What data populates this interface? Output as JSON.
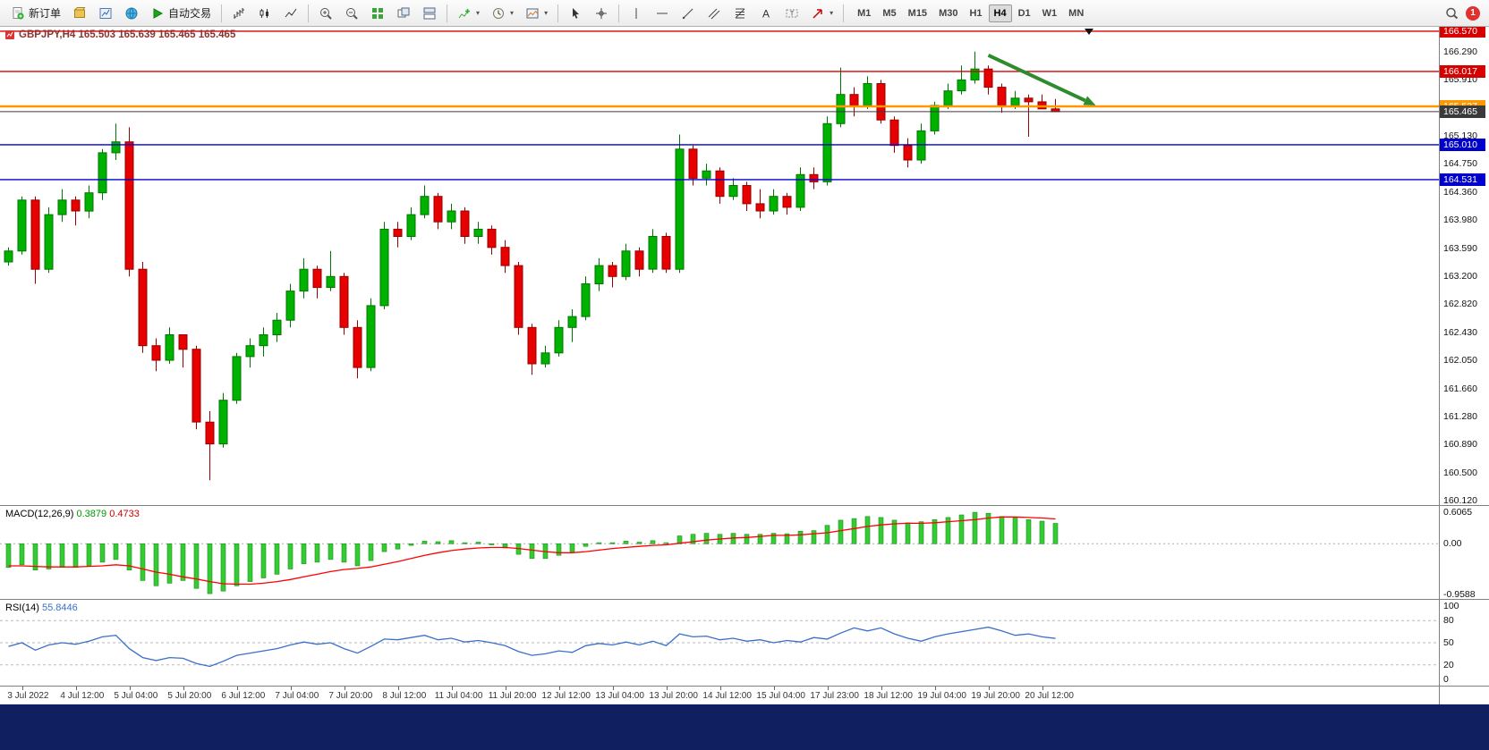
{
  "toolbar": {
    "new_order_label": "新订单",
    "auto_trading_label": "自动交易",
    "timeframes": [
      "M1",
      "M5",
      "M15",
      "M30",
      "H1",
      "H4",
      "D1",
      "W1",
      "MN"
    ],
    "active_timeframe": "H4",
    "notification_count": "1"
  },
  "chart": {
    "title": "GBPJPY,H4 165.503 165.639 165.465 165.465"
  },
  "chart_data": {
    "type": "candlestick",
    "symbol": "GBPJPY",
    "timeframe": "H4",
    "last_ohlc": {
      "open": "165.503",
      "high": "165.639",
      "low": "165.465",
      "close": "165.465"
    },
    "price_axis": {
      "ymin": 160.06,
      "ymax": 166.63,
      "ticks": [
        "166.290",
        "165.910",
        "165.130",
        "164.750",
        "164.360",
        "163.980",
        "163.590",
        "163.200",
        "162.820",
        "162.430",
        "162.050",
        "161.660",
        "161.280",
        "160.890",
        "160.500",
        "160.120"
      ]
    },
    "levels": [
      {
        "name": "resistance-line-upper",
        "label": "166.570",
        "value": 166.57,
        "color": "#d60000",
        "width": 1.4
      },
      {
        "name": "resistance-line-lower",
        "label": "166.017",
        "value": 166.017,
        "color": "#d60000",
        "width": 1.4
      },
      {
        "name": "key-level-orange",
        "label": "165.537",
        "value": 165.537,
        "color": "#ff9800",
        "width": 2.4
      },
      {
        "name": "current-price-line",
        "label": "165.465",
        "value": 165.465,
        "color": "#3a3a3a",
        "width": 1
      },
      {
        "name": "support-line-upper",
        "label": "165.010",
        "value": 165.01,
        "color": "#0000cc",
        "width": 1.4
      },
      {
        "name": "support-line-lower",
        "label": "164.531",
        "value": 164.531,
        "color": "#0000cc",
        "width": 1.4
      }
    ],
    "candles": [
      [
        163.4,
        163.6,
        163.35,
        163.55
      ],
      [
        163.55,
        164.3,
        163.5,
        164.25
      ],
      [
        164.25,
        164.3,
        163.1,
        163.3
      ],
      [
        163.3,
        164.15,
        163.25,
        164.05
      ],
      [
        164.05,
        164.4,
        163.95,
        164.25
      ],
      [
        164.25,
        164.3,
        163.9,
        164.1
      ],
      [
        164.1,
        164.45,
        164.0,
        164.35
      ],
      [
        164.35,
        164.95,
        164.25,
        164.9
      ],
      [
        164.9,
        165.3,
        164.8,
        165.05
      ],
      [
        165.05,
        165.25,
        163.2,
        163.3
      ],
      [
        163.3,
        163.4,
        162.15,
        162.25
      ],
      [
        162.25,
        162.35,
        161.9,
        162.05
      ],
      [
        162.05,
        162.5,
        162.0,
        162.4
      ],
      [
        162.4,
        162.4,
        161.95,
        162.2
      ],
      [
        162.2,
        162.25,
        161.1,
        161.2
      ],
      [
        161.2,
        161.35,
        160.4,
        160.9
      ],
      [
        160.9,
        161.6,
        160.85,
        161.5
      ],
      [
        161.5,
        162.15,
        161.45,
        162.1
      ],
      [
        162.1,
        162.35,
        161.95,
        162.25
      ],
      [
        162.25,
        162.5,
        162.1,
        162.4
      ],
      [
        162.4,
        162.7,
        162.3,
        162.6
      ],
      [
        162.6,
        163.1,
        162.5,
        163.0
      ],
      [
        163.0,
        163.45,
        162.9,
        163.3
      ],
      [
        163.3,
        163.35,
        162.9,
        163.05
      ],
      [
        163.05,
        163.55,
        163.0,
        163.2
      ],
      [
        163.2,
        163.25,
        162.4,
        162.5
      ],
      [
        162.5,
        162.6,
        161.8,
        161.95
      ],
      [
        161.95,
        162.9,
        161.9,
        162.8
      ],
      [
        162.8,
        163.95,
        162.75,
        163.85
      ],
      [
        163.85,
        163.95,
        163.6,
        163.75
      ],
      [
        163.75,
        164.15,
        163.7,
        164.05
      ],
      [
        164.05,
        164.45,
        164.0,
        164.3
      ],
      [
        164.3,
        164.35,
        163.85,
        163.95
      ],
      [
        163.95,
        164.2,
        163.85,
        164.1
      ],
      [
        164.1,
        164.15,
        163.65,
        163.75
      ],
      [
        163.75,
        163.95,
        163.65,
        163.85
      ],
      [
        163.85,
        163.9,
        163.5,
        163.6
      ],
      [
        163.6,
        163.7,
        163.25,
        163.35
      ],
      [
        163.35,
        163.4,
        162.4,
        162.5
      ],
      [
        162.5,
        162.55,
        161.85,
        162.0
      ],
      [
        162.0,
        162.25,
        161.95,
        162.15
      ],
      [
        162.15,
        162.6,
        162.1,
        162.5
      ],
      [
        162.5,
        162.75,
        162.3,
        162.65
      ],
      [
        162.65,
        163.2,
        162.6,
        163.1
      ],
      [
        163.1,
        163.45,
        163.0,
        163.35
      ],
      [
        163.35,
        163.4,
        163.05,
        163.2
      ],
      [
        163.2,
        163.65,
        163.15,
        163.55
      ],
      [
        163.55,
        163.6,
        163.2,
        163.3
      ],
      [
        163.3,
        163.85,
        163.25,
        163.75
      ],
      [
        163.75,
        163.8,
        163.25,
        163.3
      ],
      [
        163.3,
        165.15,
        163.25,
        164.95
      ],
      [
        164.95,
        165.0,
        164.45,
        164.55
      ],
      [
        164.55,
        164.75,
        164.45,
        164.65
      ],
      [
        164.65,
        164.7,
        164.2,
        164.3
      ],
      [
        164.3,
        164.55,
        164.25,
        164.45
      ],
      [
        164.45,
        164.5,
        164.1,
        164.2
      ],
      [
        164.2,
        164.4,
        164.0,
        164.1
      ],
      [
        164.1,
        164.4,
        164.05,
        164.3
      ],
      [
        164.3,
        164.35,
        164.05,
        164.15
      ],
      [
        164.15,
        164.7,
        164.1,
        164.6
      ],
      [
        164.6,
        164.7,
        164.4,
        164.5
      ],
      [
        164.5,
        165.4,
        164.45,
        165.3
      ],
      [
        165.3,
        166.07,
        165.25,
        165.7
      ],
      [
        165.7,
        165.8,
        165.4,
        165.55
      ],
      [
        165.55,
        165.95,
        165.5,
        165.85
      ],
      [
        165.85,
        165.9,
        165.3,
        165.35
      ],
      [
        165.35,
        165.4,
        164.9,
        165.0
      ],
      [
        165.0,
        165.1,
        164.7,
        164.8
      ],
      [
        164.8,
        165.3,
        164.75,
        165.2
      ],
      [
        165.2,
        165.6,
        165.15,
        165.55
      ],
      [
        165.55,
        165.85,
        165.5,
        165.75
      ],
      [
        165.75,
        166.1,
        165.7,
        165.9
      ],
      [
        165.9,
        166.29,
        165.85,
        166.05
      ],
      [
        166.05,
        166.1,
        165.7,
        165.8
      ],
      [
        165.8,
        165.85,
        165.45,
        165.55
      ],
      [
        165.55,
        165.75,
        165.5,
        165.65
      ],
      [
        165.65,
        165.7,
        165.12,
        165.6
      ],
      [
        165.6,
        165.7,
        165.5,
        165.503
      ],
      [
        165.503,
        165.639,
        165.465,
        165.465
      ]
    ],
    "time_axis": {
      "start_index": 1,
      "step": 4,
      "labels": [
        "3 Jul 2022",
        "4 Jul 12:00",
        "5 Jul 04:00",
        "5 Jul 20:00",
        "6 Jul 12:00",
        "7 Jul 04:00",
        "7 Jul 20:00",
        "8 Jul 12:00",
        "11 Jul 04:00",
        "11 Jul 20:00",
        "12 Jul 12:00",
        "13 Jul 04:00",
        "13 Jul 20:00",
        "14 Jul 12:00",
        "15 Jul 04:00",
        "17 Jul 23:00",
        "18 Jul 12:00",
        "19 Jul 04:00",
        "19 Jul 20:00",
        "20 Jul 12:00"
      ]
    },
    "trend_arrow": {
      "x1_index": 73,
      "y1_price": 166.24,
      "x2_index": 81,
      "y2_price": 165.55,
      "color": "#2e8b2e"
    },
    "shift_marker_index": 80.5,
    "macd": {
      "label": "MACD(12,26,9)",
      "main_value": "0.3879",
      "signal_value": "0.4733",
      "ymax": 0.72,
      "ymin": -1.05,
      "axis_ticks": [
        "0.6065",
        "0.00",
        "-0.9588"
      ],
      "histogram": [
        -0.45,
        -0.4,
        -0.5,
        -0.48,
        -0.45,
        -0.45,
        -0.42,
        -0.35,
        -0.3,
        -0.5,
        -0.7,
        -0.8,
        -0.75,
        -0.7,
        -0.85,
        -0.95,
        -0.9,
        -0.8,
        -0.72,
        -0.65,
        -0.58,
        -0.48,
        -0.38,
        -0.35,
        -0.3,
        -0.35,
        -0.42,
        -0.32,
        -0.15,
        -0.1,
        -0.03,
        0.05,
        0.04,
        0.06,
        0.02,
        0.03,
        -0.02,
        -0.08,
        -0.2,
        -0.28,
        -0.28,
        -0.22,
        -0.15,
        -0.05,
        0.02,
        0.02,
        0.05,
        0.03,
        0.06,
        0.02,
        0.15,
        0.18,
        0.2,
        0.18,
        0.2,
        0.18,
        0.18,
        0.2,
        0.19,
        0.24,
        0.25,
        0.35,
        0.45,
        0.48,
        0.52,
        0.5,
        0.45,
        0.4,
        0.42,
        0.46,
        0.5,
        0.55,
        0.6,
        0.58,
        0.52,
        0.5,
        0.46,
        0.43,
        0.3879
      ],
      "signal": [
        -0.42,
        -0.42,
        -0.43,
        -0.44,
        -0.44,
        -0.44,
        -0.43,
        -0.42,
        -0.4,
        -0.42,
        -0.48,
        -0.54,
        -0.58,
        -0.63,
        -0.67,
        -0.72,
        -0.76,
        -0.77,
        -0.77,
        -0.75,
        -0.72,
        -0.68,
        -0.63,
        -0.58,
        -0.53,
        -0.49,
        -0.47,
        -0.44,
        -0.39,
        -0.34,
        -0.28,
        -0.22,
        -0.17,
        -0.13,
        -0.1,
        -0.08,
        -0.07,
        -0.07,
        -0.09,
        -0.12,
        -0.15,
        -0.17,
        -0.17,
        -0.15,
        -0.12,
        -0.09,
        -0.07,
        -0.05,
        -0.03,
        -0.02,
        0.01,
        0.04,
        0.07,
        0.09,
        0.11,
        0.12,
        0.14,
        0.16,
        0.16,
        0.17,
        0.19,
        0.21,
        0.25,
        0.29,
        0.33,
        0.36,
        0.38,
        0.39,
        0.39,
        0.4,
        0.42,
        0.44,
        0.46,
        0.49,
        0.51,
        0.51,
        0.5,
        0.49,
        0.4733
      ]
    },
    "rsi": {
      "label": "RSI(14)",
      "value": "55.8446",
      "ymax": 108,
      "ymin": -8,
      "axis_ticks": [
        "100",
        "80",
        "50",
        "20",
        "0"
      ],
      "level_lines": [
        80,
        50,
        20
      ],
      "values": [
        45,
        50,
        40,
        47,
        50,
        48,
        52,
        58,
        60,
        42,
        30,
        26,
        30,
        29,
        22,
        18,
        25,
        33,
        36,
        39,
        42,
        47,
        51,
        48,
        50,
        42,
        36,
        45,
        55,
        54,
        57,
        60,
        54,
        56,
        51,
        53,
        50,
        46,
        38,
        33,
        35,
        39,
        37,
        46,
        49,
        47,
        51,
        47,
        52,
        46,
        62,
        58,
        59,
        54,
        56,
        52,
        54,
        50,
        53,
        51,
        57,
        55,
        63,
        70,
        66,
        70,
        62,
        56,
        52,
        58,
        62,
        65,
        68,
        71,
        66,
        60,
        62,
        58,
        55.84
      ]
    }
  },
  "colors": {
    "bull": "#00b200",
    "bull_dark": "#007500",
    "bear": "#e60000",
    "bear_dark": "#9a0000",
    "macd_hist": "#33cc33",
    "macd_hist_border": "#1f8f1f",
    "macd_signal": "#ff0000",
    "rsi_line": "#3a6fc9",
    "bottom_bar": "#101f5f"
  }
}
